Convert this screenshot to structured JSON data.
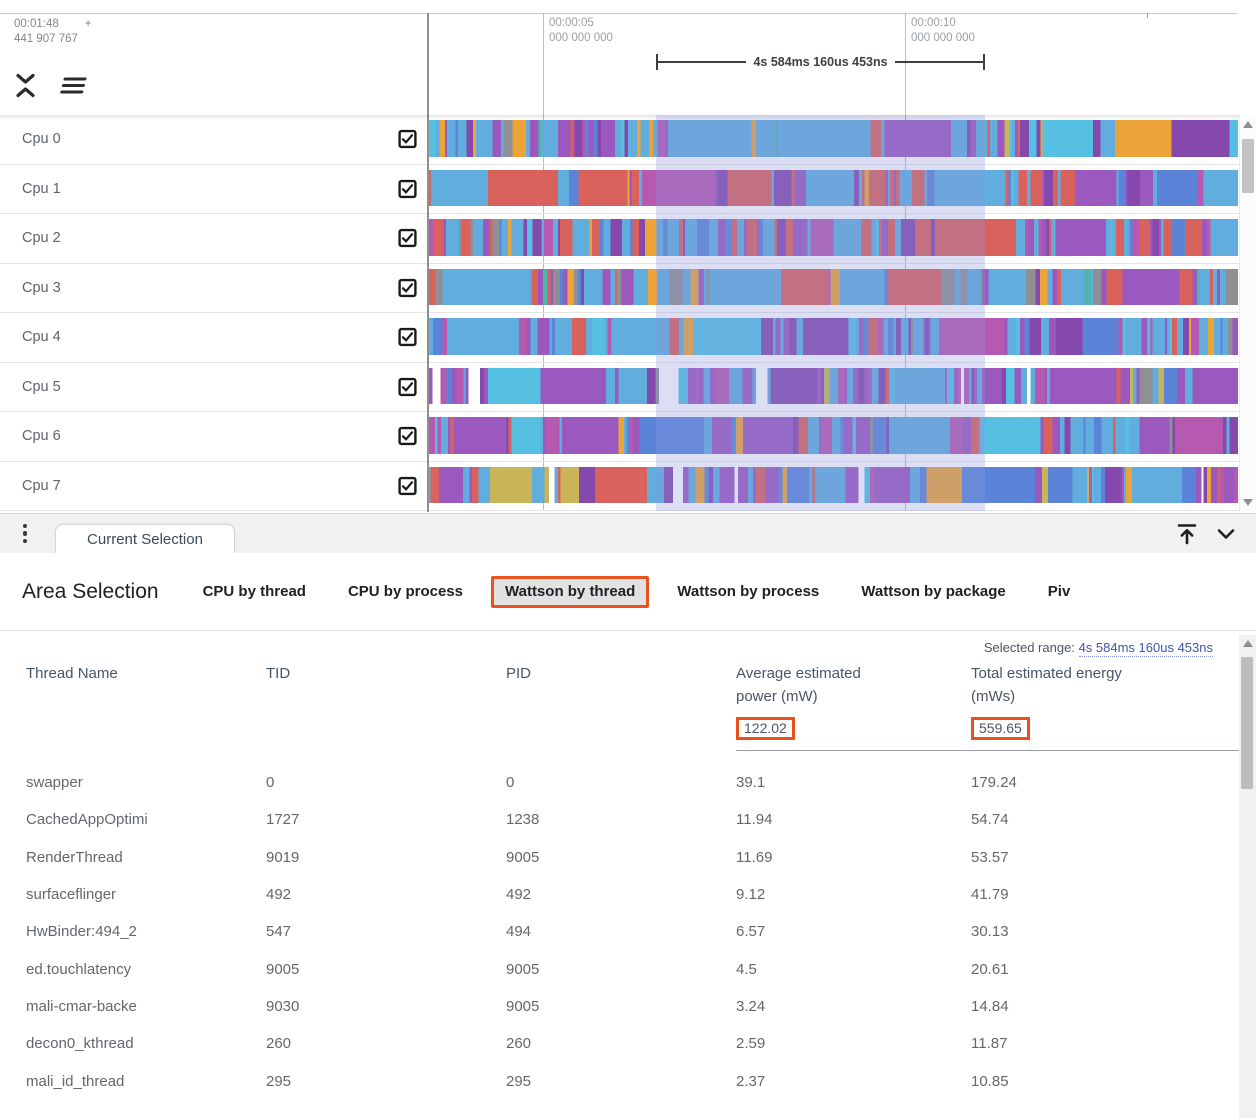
{
  "colors": {
    "annotation": "#e8531d",
    "selection_overlay": "rgba(140,150,220,0.30)",
    "palette": {
      "lb": "#61aede",
      "sb": "#55c0e2",
      "bl": "#5b84d8",
      "pu": "#9b59c0",
      "dp": "#8549ad",
      "mg": "#b55ab0",
      "rd": "#d9625c",
      "or": "#eca438",
      "ol": "#c9b458",
      "tl": "#4db6a4",
      "gy": "#8f9094",
      "wh": "#ffffff"
    }
  },
  "timeline": {
    "origin": {
      "time": "00:01:48",
      "plus": "+",
      "subtime": "441 907 767"
    },
    "ruler_marks": [
      {
        "line1": "00:00:05",
        "line2": "000 000 000"
      },
      {
        "line1": "00:00:10",
        "line2": "000 000 000"
      }
    ],
    "span_label": "4s 584ms 160us 453ns",
    "tracks": [
      {
        "label": "Cpu 0",
        "checked": true,
        "seed": 101,
        "mix": [
          [
            "lb",
            38
          ],
          [
            "sb",
            6
          ],
          [
            "bl",
            10
          ],
          [
            "pu",
            14
          ],
          [
            "dp",
            5
          ],
          [
            "mg",
            4
          ],
          [
            "rd",
            4
          ],
          [
            "or",
            10
          ],
          [
            "tl",
            5
          ],
          [
            "gy",
            2
          ],
          [
            "ol",
            2
          ]
        ]
      },
      {
        "label": "Cpu 1",
        "checked": true,
        "seed": 202,
        "mix": [
          [
            "rd",
            20
          ],
          [
            "lb",
            30
          ],
          [
            "bl",
            8
          ],
          [
            "pu",
            18
          ],
          [
            "dp",
            8
          ],
          [
            "mg",
            6
          ],
          [
            "sb",
            4
          ],
          [
            "or",
            3
          ],
          [
            "gy",
            3
          ]
        ]
      },
      {
        "label": "Cpu 2",
        "checked": true,
        "seed": 303,
        "mix": [
          [
            "rd",
            24
          ],
          [
            "lb",
            24
          ],
          [
            "bl",
            8
          ],
          [
            "pu",
            20
          ],
          [
            "dp",
            8
          ],
          [
            "mg",
            6
          ],
          [
            "or",
            5
          ],
          [
            "gy",
            3
          ],
          [
            "sb",
            2
          ]
        ]
      },
      {
        "label": "Cpu 3",
        "checked": true,
        "seed": 404,
        "mix": [
          [
            "lb",
            28
          ],
          [
            "bl",
            10
          ],
          [
            "pu",
            16
          ],
          [
            "dp",
            6
          ],
          [
            "rd",
            14
          ],
          [
            "gy",
            14
          ],
          [
            "mg",
            4
          ],
          [
            "tl",
            4
          ],
          [
            "or",
            4
          ]
        ]
      },
      {
        "label": "Cpu 4",
        "checked": true,
        "seed": 505,
        "mix": [
          [
            "lb",
            44
          ],
          [
            "sb",
            8
          ],
          [
            "bl",
            12
          ],
          [
            "pu",
            16
          ],
          [
            "dp",
            6
          ],
          [
            "mg",
            5
          ],
          [
            "rd",
            4
          ],
          [
            "or",
            3
          ],
          [
            "gy",
            2
          ]
        ]
      },
      {
        "label": "Cpu 5",
        "checked": true,
        "seed": 606,
        "mix": [
          [
            "pu",
            30
          ],
          [
            "dp",
            8
          ],
          [
            "lb",
            26
          ],
          [
            "sb",
            4
          ],
          [
            "mg",
            8
          ],
          [
            "wh",
            8
          ],
          [
            "ol",
            4
          ],
          [
            "rd",
            5
          ],
          [
            "bl",
            5
          ],
          [
            "gy",
            2
          ]
        ]
      },
      {
        "label": "Cpu 6",
        "checked": true,
        "seed": 707,
        "mix": [
          [
            "lb",
            32
          ],
          [
            "sb",
            8
          ],
          [
            "bl",
            12
          ],
          [
            "pu",
            22
          ],
          [
            "dp",
            8
          ],
          [
            "mg",
            8
          ],
          [
            "rd",
            5
          ],
          [
            "or",
            3
          ],
          [
            "gy",
            2
          ]
        ]
      },
      {
        "label": "Cpu 7",
        "checked": true,
        "seed": 808,
        "mix": [
          [
            "pu",
            26
          ],
          [
            "dp",
            8
          ],
          [
            "lb",
            24
          ],
          [
            "bl",
            8
          ],
          [
            "mg",
            8
          ],
          [
            "wh",
            6
          ],
          [
            "or",
            5
          ],
          [
            "ol",
            4
          ],
          [
            "rd",
            8
          ],
          [
            "sb",
            3
          ]
        ]
      }
    ]
  },
  "tabstrip": {
    "current_tab": "Current Selection"
  },
  "detail": {
    "title": "Area Selection",
    "tabs": [
      {
        "label": "CPU by thread",
        "active": false
      },
      {
        "label": "CPU by process",
        "active": false
      },
      {
        "label": "Wattson by thread",
        "active": true
      },
      {
        "label": "Wattson by process",
        "active": false
      },
      {
        "label": "Wattson by package",
        "active": false
      },
      {
        "label": "Piv",
        "active": false
      }
    ],
    "selected_range_label": "Selected range:",
    "selected_range_value": "4s 584ms 160us 453ns",
    "table": {
      "columns": [
        "Thread Name",
        "TID",
        "PID",
        "Average estimated power (mW)",
        "Total estimated energy (mWs)"
      ],
      "summary": [
        "",
        "",
        "",
        "122.02",
        "559.65"
      ],
      "rows": [
        [
          "swapper",
          "0",
          "0",
          "39.1",
          "179.24"
        ],
        [
          "CachedAppOptimi",
          "1727",
          "1238",
          "11.94",
          "54.74"
        ],
        [
          "RenderThread",
          "9019",
          "9005",
          "11.69",
          "53.57"
        ],
        [
          "surfaceflinger",
          "492",
          "492",
          "9.12",
          "41.79"
        ],
        [
          "HwBinder:494_2",
          "547",
          "494",
          "6.57",
          "30.13"
        ],
        [
          "ed.touchlatency",
          "9005",
          "9005",
          "4.5",
          "20.61"
        ],
        [
          "mali-cmar-backe",
          "9030",
          "9005",
          "3.24",
          "14.84"
        ],
        [
          "decon0_kthread",
          "260",
          "260",
          "2.59",
          "11.87"
        ],
        [
          "mali_id_thread",
          "295",
          "295",
          "2.37",
          "10.85"
        ]
      ]
    }
  }
}
